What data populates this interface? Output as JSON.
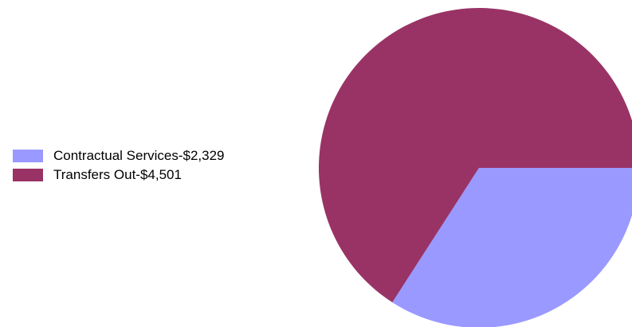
{
  "chart_data": {
    "type": "pie",
    "categories": [
      "Contractual Services",
      "Transfers Out"
    ],
    "values": [
      2329,
      4501
    ],
    "colors": [
      "#9999ff",
      "#993366"
    ],
    "legend": {
      "placement": "left",
      "entries": [
        "Contractual Services-$2,329",
        "Transfers Out-$4,501"
      ]
    },
    "start_angle_deg": 0,
    "direction": "clockwise"
  }
}
